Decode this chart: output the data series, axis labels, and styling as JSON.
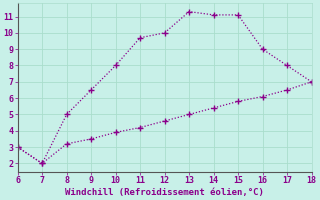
{
  "line1_x": [
    6,
    7,
    8,
    9,
    10,
    11,
    12,
    13,
    14,
    15,
    16,
    17,
    18
  ],
  "line1_y": [
    3.0,
    2.0,
    5.0,
    6.5,
    8.0,
    9.7,
    10.0,
    11.3,
    11.1,
    11.1,
    9.0,
    8.0,
    7.0
  ],
  "line2_x": [
    6,
    7,
    8,
    9,
    10,
    11,
    12,
    13,
    14,
    15,
    16,
    17,
    18
  ],
  "line2_y": [
    3.0,
    2.0,
    3.2,
    3.5,
    3.9,
    4.2,
    4.6,
    5.0,
    5.4,
    5.8,
    6.1,
    6.5,
    7.0
  ],
  "line_color": "#8b008b",
  "bg_color": "#c8f0e8",
  "grid_color": "#aaddcc",
  "xlabel": "Windchill (Refroidissement éolien,°C)",
  "xlabel_color": "#8b008b",
  "tick_color": "#8b008b",
  "xlim": [
    6,
    18
  ],
  "ylim": [
    1.5,
    11.8
  ],
  "xticks": [
    6,
    7,
    8,
    9,
    10,
    11,
    12,
    13,
    14,
    15,
    16,
    17,
    18
  ],
  "yticks": [
    2,
    3,
    4,
    5,
    6,
    7,
    8,
    9,
    10,
    11
  ],
  "marker": "+",
  "markersize": 4,
  "linewidth": 0.9
}
